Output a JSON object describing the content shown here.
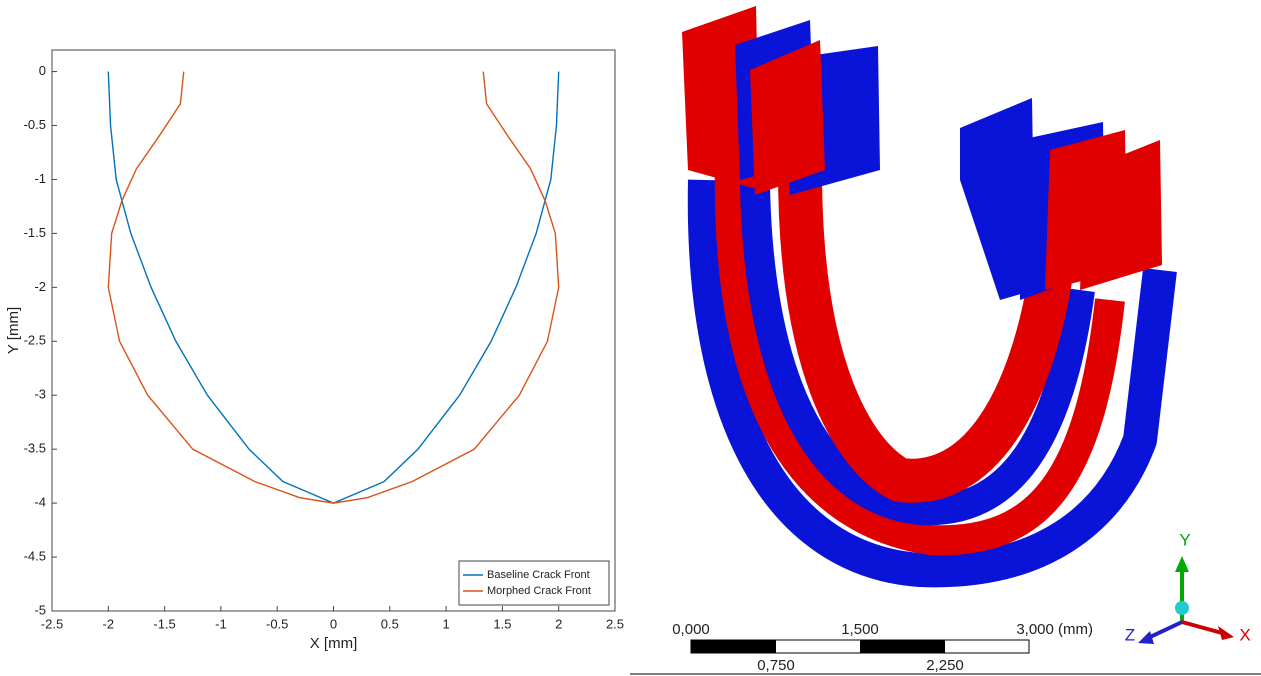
{
  "chart_data": {
    "type": "line",
    "xlabel": "X  [mm]",
    "ylabel": "Y  [mm]",
    "xlim": [
      -2.5,
      2.5
    ],
    "ylim": [
      -5,
      0.2
    ],
    "xticks": [
      -2.5,
      -2,
      -1.5,
      -1,
      -0.5,
      0,
      0.5,
      1,
      1.5,
      2,
      2.5
    ],
    "yticks": [
      0,
      -0.5,
      -1,
      -1.5,
      -2,
      -2.5,
      -3,
      -3.5,
      -4,
      -4.5,
      -5
    ],
    "grid": false,
    "legend": "lower-right",
    "series": [
      {
        "name": "Baseline Crack Front",
        "color": "#0072bd",
        "x": [
          -2,
          -1.98,
          -1.93,
          -1.8,
          -1.62,
          -1.4,
          -1.12,
          -0.75,
          -0.45,
          0,
          0.45,
          0.75,
          1.12,
          1.4,
          1.62,
          1.8,
          1.93,
          1.98,
          2
        ],
        "values": [
          0,
          -0.5,
          -1,
          -1.5,
          -2,
          -2.5,
          -3,
          -3.5,
          -3.8,
          -4,
          -3.8,
          -3.5,
          -3,
          -2.5,
          -2,
          -1.5,
          -1,
          -0.5,
          0
        ]
      },
      {
        "name": "Morphed Crack Front",
        "color": "#d95319",
        "x": [
          -1.33,
          -1.36,
          -1.55,
          -1.75,
          -1.88,
          -1.97,
          -2,
          -1.9,
          -1.65,
          -1.25,
          -0.7,
          -0.3,
          0,
          0.3,
          0.7,
          1.25,
          1.65,
          1.9,
          2,
          1.97,
          1.88,
          1.75,
          1.55,
          1.36,
          1.33
        ],
        "values": [
          0,
          -0.3,
          -0.6,
          -0.9,
          -1.2,
          -1.5,
          -2,
          -2.5,
          -3,
          -3.5,
          -3.8,
          -3.95,
          -4,
          -3.95,
          -3.8,
          -3.5,
          -3,
          -2.5,
          -2,
          -1.5,
          -1.2,
          -0.9,
          -0.6,
          -0.3,
          0
        ]
      }
    ]
  },
  "scale_bar": {
    "top": [
      "0,000",
      "1,500",
      "3,000 (mm)"
    ],
    "bottom": [
      "0,750",
      "2,250"
    ]
  },
  "triad": {
    "y": "Y",
    "z": "Z",
    "x": "X"
  }
}
